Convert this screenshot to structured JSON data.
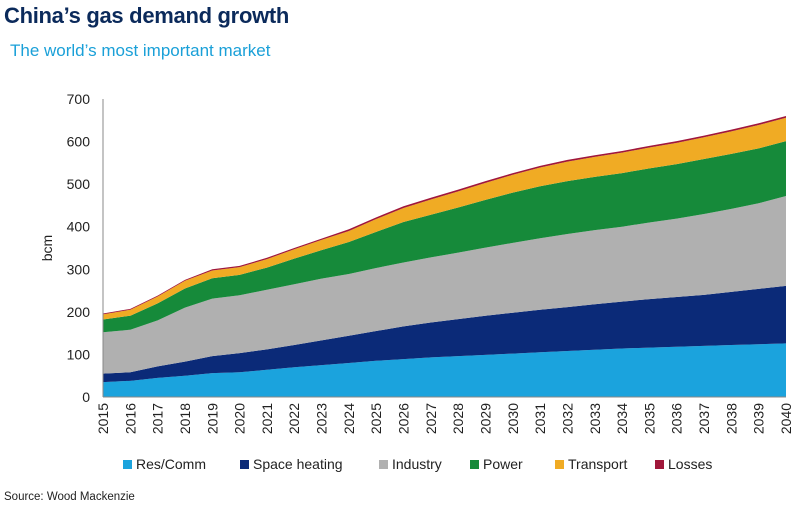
{
  "header": {
    "title": "China’s gas demand growth",
    "subtitle": "The world’s most important market"
  },
  "footer": {
    "source": "Source: Wood Mackenzie"
  },
  "chart_data": {
    "type": "area",
    "stacked": true,
    "x": [
      "2015",
      "2016",
      "2017",
      "2018",
      "2019",
      "2020",
      "2021",
      "2022",
      "2023",
      "2024",
      "2025",
      "2026",
      "2027",
      "2028",
      "2029",
      "2030",
      "2031",
      "2032",
      "2033",
      "2034",
      "2035",
      "2036",
      "2037",
      "2038",
      "2039",
      "2040"
    ],
    "ylabel": "bcm",
    "ylim": [
      0,
      700
    ],
    "yticks": [
      0,
      100,
      200,
      300,
      400,
      500,
      600,
      700
    ],
    "grid": false,
    "legend_position": "bottom",
    "series": [
      {
        "name": "Res/Comm",
        "color": "#1ba3dd",
        "values": [
          35,
          38,
          45,
          50,
          56,
          58,
          64,
          70,
          75,
          80,
          85,
          89,
          93,
          96,
          99,
          102,
          105,
          108,
          111,
          114,
          116,
          118,
          120,
          122,
          124,
          126
        ]
      },
      {
        "name": "Space heating",
        "color": "#0b2a78",
        "values": [
          20,
          20,
          27,
          33,
          40,
          45,
          48,
          52,
          58,
          64,
          70,
          77,
          82,
          87,
          92,
          96,
          100,
          103,
          107,
          110,
          114,
          117,
          120,
          125,
          130,
          135
        ]
      },
      {
        "name": "Industry",
        "color": "#b0b0b0",
        "values": [
          97,
          100,
          108,
          127,
          135,
          136,
          140,
          143,
          145,
          145,
          148,
          150,
          153,
          156,
          160,
          164,
          168,
          172,
          174,
          176,
          180,
          184,
          190,
          195,
          201,
          211
        ]
      },
      {
        "name": "Power",
        "color": "#168a3a",
        "values": [
          30,
          33,
          40,
          45,
          48,
          48,
          52,
          60,
          67,
          75,
          85,
          95,
          100,
          106,
          112,
          118,
          122,
          124,
          125,
          126,
          127,
          128,
          129,
          129,
          129,
          129
        ]
      },
      {
        "name": "Transport",
        "color": "#f0ab24",
        "values": [
          12,
          14,
          16,
          18,
          18,
          18,
          20,
          22,
          24,
          26,
          30,
          33,
          36,
          38,
          40,
          42,
          44,
          46,
          47,
          48,
          49,
          50,
          51,
          53,
          55,
          55
        ]
      },
      {
        "name": "Losses",
        "color": "#a0173a",
        "values": [
          2,
          2,
          2,
          2,
          3,
          3,
          3,
          3,
          3,
          4,
          4,
          4,
          4,
          4,
          4,
          4,
          4,
          4,
          4,
          4,
          4,
          4,
          4,
          4,
          4,
          4
        ]
      }
    ]
  }
}
